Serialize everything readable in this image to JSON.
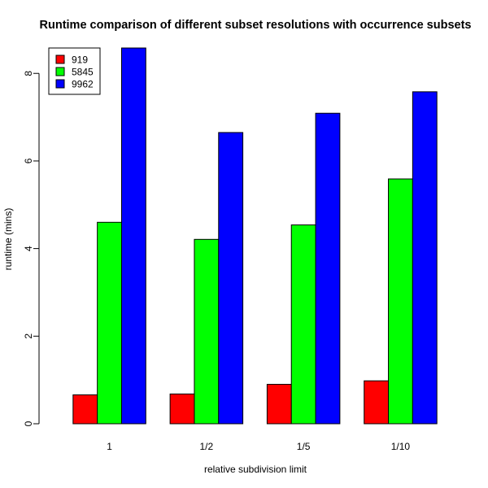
{
  "chart_data": {
    "type": "bar",
    "title": "Runtime comparison of different subset resolutions with occurrence subsets",
    "xlabel": "relative subdivision limit",
    "ylabel": "runtime (mins)",
    "categories": [
      "1",
      "1/2",
      "1/5",
      "1/10"
    ],
    "series": [
      {
        "name": "919",
        "color": "#ff0000",
        "values": [
          0.66,
          0.68,
          0.9,
          0.98
        ]
      },
      {
        "name": "5845",
        "color": "#00ff00",
        "values": [
          4.6,
          4.21,
          4.54,
          5.59
        ]
      },
      {
        "name": "9962",
        "color": "#0000ff",
        "values": [
          8.58,
          6.65,
          7.09,
          7.58
        ]
      }
    ],
    "yticks": [
      "0",
      "2",
      "4",
      "6",
      "8"
    ],
    "ylim": [
      0,
      8.58
    ],
    "legend_position": "top-left",
    "grid": false
  }
}
